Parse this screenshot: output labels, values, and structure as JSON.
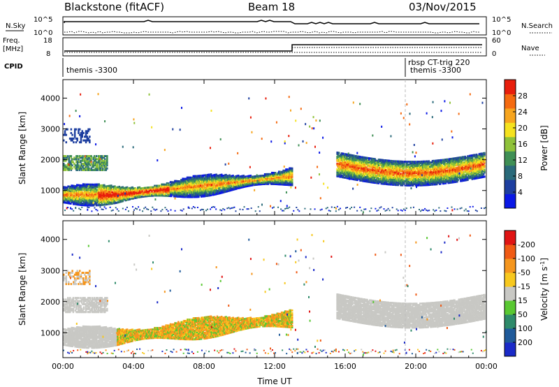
{
  "header": {
    "station": "Blackstone (fitACF)",
    "beam": "Beam 18",
    "date": "03/Nov/2015"
  },
  "labels": {
    "nsky": "N.Sky",
    "nsearch": "N.Search",
    "freq_line1": "Freq.",
    "freq_line2": "[MHz]",
    "nave": "Nave",
    "cpid": "CPID",
    "nsky_top_left": "10^5",
    "nsky_bottom_left": "10^0",
    "nsky_top_right": "10^5",
    "nsky_bottom_right": "10^0",
    "freq_top_left": "18",
    "freq_bottom_left": "8",
    "nave_top_right": "60",
    "nave_bottom_right": "0"
  },
  "cpid": {
    "left": "themis -3300",
    "right_top": "rbsp CT-trig 220",
    "right_bottom": "themis -3300"
  },
  "chart_data": [
    {
      "type": "heatmap",
      "name": "power",
      "ylabel": "Slant Range [km]",
      "xlabel": "",
      "ylim": [
        200,
        4600
      ],
      "yticks": [
        "1000",
        "2000",
        "3000",
        "4000"
      ],
      "xticks": [
        "00:00",
        "04:00",
        "08:00",
        "12:00",
        "16:00",
        "20:00",
        "00:00"
      ],
      "colorbar": {
        "label": "Power [dB]",
        "ticks": [
          "4",
          "8",
          "12",
          "16",
          "20",
          "24",
          "28"
        ],
        "colors": [
          "#0a18e6",
          "#1e3fa0",
          "#2a6a7a",
          "#3f8f55",
          "#8fc23a",
          "#f5e21e",
          "#f7a51e",
          "#f56a10",
          "#e81e0c"
        ]
      }
    },
    {
      "type": "heatmap",
      "name": "velocity",
      "ylabel": "Slant Range [km]",
      "xlabel": "Time UT",
      "ylim": [
        200,
        4600
      ],
      "yticks": [
        "1000",
        "2000",
        "3000",
        "4000"
      ],
      "xticks": [
        "00:00",
        "04:00",
        "08:00",
        "12:00",
        "16:00",
        "20:00",
        "00:00"
      ],
      "colorbar": {
        "label": "Velocity [m s",
        "unit_sup": "-1",
        "label_close": "]",
        "ticks": [
          "200",
          "100",
          "50",
          "15",
          "-15",
          "-50",
          "-100",
          "-200"
        ],
        "colors": [
          "#1a2ac8",
          "#1f5a9a",
          "#2e8a6a",
          "#59c832",
          "#c8c8c4",
          "#f7c81e",
          "#f5961e",
          "#f05a14",
          "#e01414"
        ]
      }
    }
  ]
}
